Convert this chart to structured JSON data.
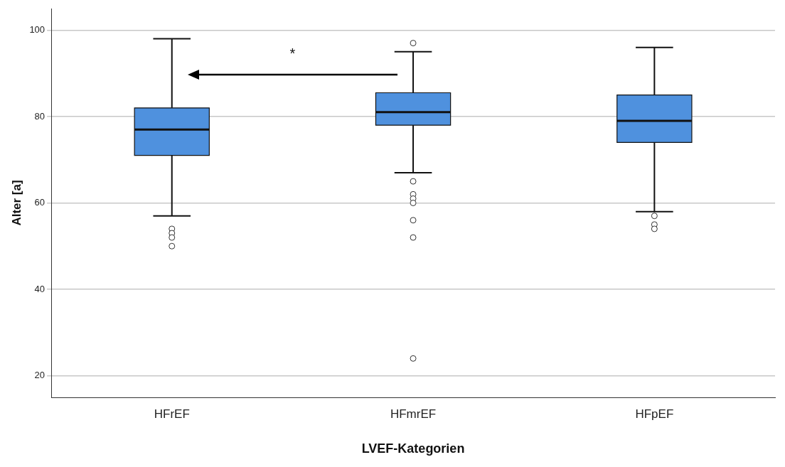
{
  "chart_data": {
    "type": "box",
    "xlabel": "LVEF-Kategorien",
    "ylabel": "Alter [a]",
    "categories": [
      "HFrEF",
      "HFmrEF",
      "HFpEF"
    ],
    "color": "#4f91de",
    "boxes": [
      {
        "low": 57,
        "q1": 71,
        "median": 77,
        "q3": 82,
        "high": 98,
        "outliers": [
          54,
          53,
          52,
          50
        ]
      },
      {
        "low": 67,
        "q1": 78,
        "median": 81,
        "q3": 85.5,
        "high": 95,
        "outliers": [
          97,
          65,
          62,
          61,
          60,
          56,
          52,
          24
        ]
      },
      {
        "low": 58,
        "q1": 74,
        "median": 79,
        "q3": 85,
        "high": 96,
        "outliers": [
          57,
          55,
          54
        ]
      }
    ],
    "ylim": [
      15,
      105
    ],
    "yticks": [
      20,
      40,
      60,
      80,
      100
    ],
    "grid": "y",
    "legend": false,
    "annotations": [
      "*"
    ]
  }
}
